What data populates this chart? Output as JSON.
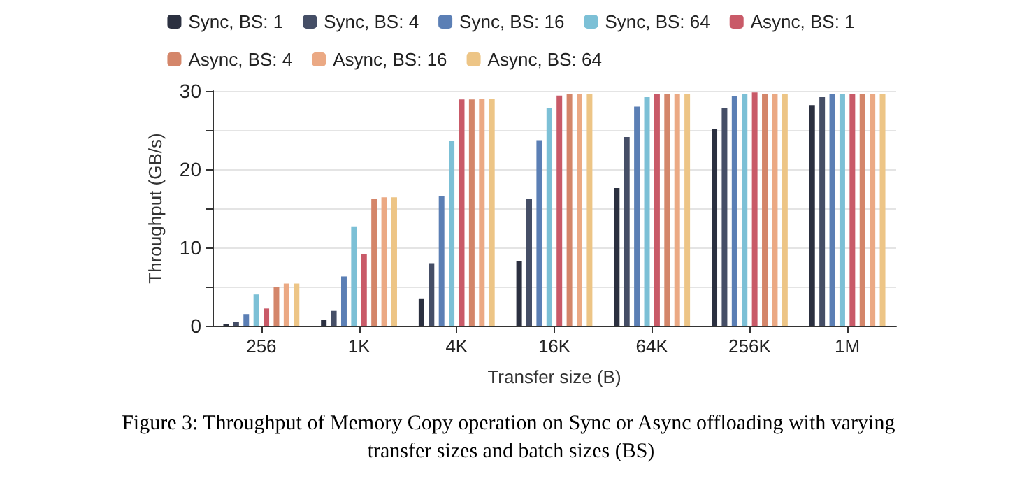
{
  "chart_data": {
    "type": "bar",
    "title": "Figure 3: Throughput of Memory Copy operation on Sync or Async offloading with varying transfer sizes and batch sizes (BS)",
    "xlabel": "Transfer size (B)",
    "ylabel": "Throughput (GB/s)",
    "categories": [
      "256",
      "1K",
      "4K",
      "16K",
      "64K",
      "256K",
      "1M"
    ],
    "series": [
      {
        "name": "Sync, BS: 1",
        "color": "#2b3040",
        "values": [
          0.2,
          0.8,
          3.5,
          8.3,
          17.6,
          25.1,
          28.2
        ]
      },
      {
        "name": "Sync, BS: 4",
        "color": "#454e66",
        "values": [
          0.5,
          1.9,
          8.0,
          16.2,
          24.1,
          27.8,
          29.2
        ]
      },
      {
        "name": "Sync, BS: 16",
        "color": "#5b7fb5",
        "values": [
          1.5,
          6.3,
          16.6,
          23.7,
          28.0,
          29.3,
          29.6
        ]
      },
      {
        "name": "Sync, BS: 64",
        "color": "#7cc0d6",
        "values": [
          4.0,
          12.7,
          23.6,
          27.8,
          29.2,
          29.6,
          29.6
        ]
      },
      {
        "name": "Async, BS: 1",
        "color": "#c95a68",
        "values": [
          2.2,
          9.1,
          28.9,
          29.4,
          29.6,
          29.8,
          29.6
        ]
      },
      {
        "name": "Async, BS: 4",
        "color": "#d4866a",
        "values": [
          5.0,
          16.2,
          28.9,
          29.6,
          29.6,
          29.6,
          29.6
        ]
      },
      {
        "name": "Async, BS: 16",
        "color": "#eba984",
        "values": [
          5.4,
          16.4,
          29.0,
          29.6,
          29.6,
          29.6,
          29.6
        ]
      },
      {
        "name": "Async, BS: 64",
        "color": "#edc586",
        "values": [
          5.4,
          16.4,
          29.0,
          29.6,
          29.6,
          29.6,
          29.6
        ]
      }
    ],
    "ylim": [
      0,
      30
    ],
    "yticks": [
      0,
      {
        "value": 5,
        "label": null
      },
      10,
      {
        "value": 15,
        "label": null
      },
      20,
      {
        "value": 25,
        "label": null
      },
      30
    ],
    "grid": "y",
    "legend": "top"
  }
}
